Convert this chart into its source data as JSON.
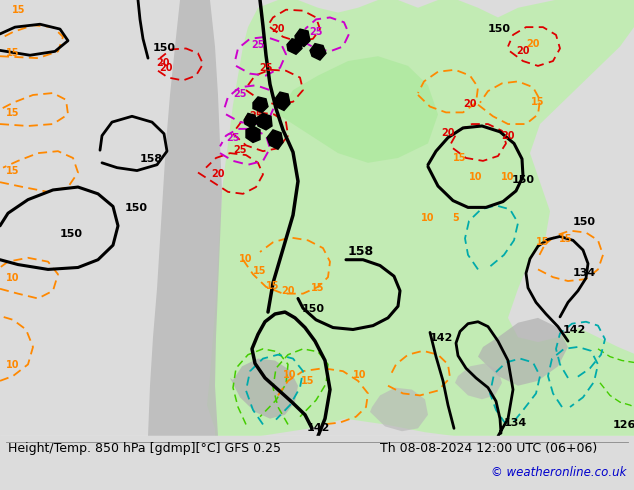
{
  "title_left": "Height/Temp. 850 hPa [gdmp][°C] GFS 0.25",
  "title_right": "Th 08-08-2024 12:00 UTC (06+06)",
  "copyright": "© weatheronline.co.uk",
  "bg_color": "#dcdcdc",
  "figsize": [
    6.34,
    4.9
  ],
  "dpi": 100,
  "title_fontsize": 9,
  "copyright_fontsize": 8,
  "copyright_color": "#0000cc",
  "orange": "#ff8800",
  "red": "#dd0000",
  "magenta": "#cc00cc",
  "cyan": "#00aaaa",
  "lime": "#44cc00",
  "green_fill": "#c0edb0",
  "gray_fill": "#b8b8b8"
}
